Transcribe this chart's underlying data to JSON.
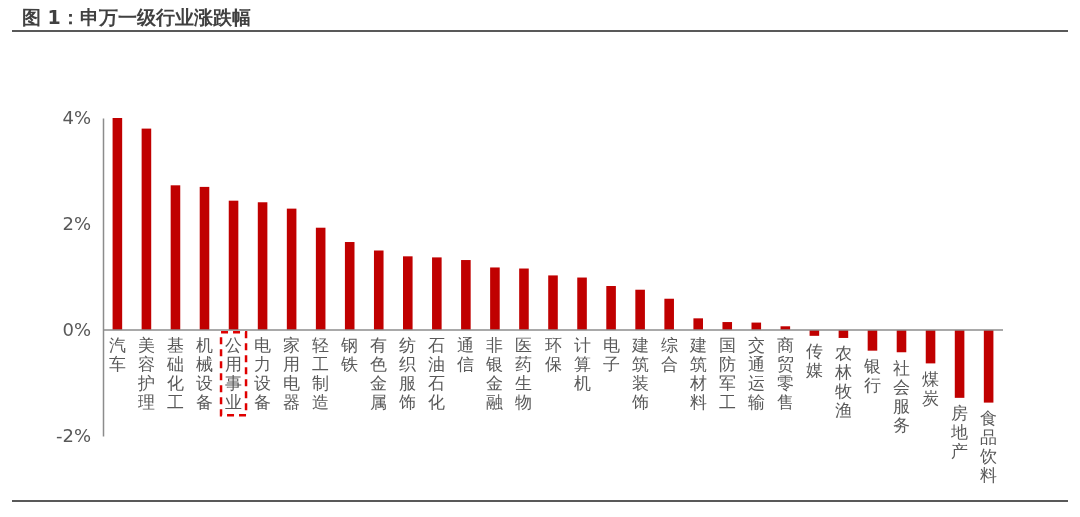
{
  "chart_data": {
    "type": "bar",
    "title": "图 1：申万一级行业涨跌幅",
    "categories": [
      "汽车",
      "美容护理",
      "基础化工",
      "机械设备",
      "公用事业",
      "电力设备",
      "家用电器",
      "轻工制造",
      "钢铁",
      "有色金属",
      "纺织服饰",
      "石油石化",
      "通信",
      "非银金融",
      "医药生物",
      "环保",
      "计算机",
      "电子",
      "建筑装饰",
      "综合",
      "建筑材料",
      "国防军工",
      "交通运输",
      "商贸零售",
      "传媒",
      "农林牧渔",
      "银行",
      "社会服务",
      "煤炭",
      "房地产",
      "食品饮料"
    ],
    "values": [
      4.0,
      3.8,
      2.73,
      2.7,
      2.44,
      2.41,
      2.29,
      1.93,
      1.66,
      1.5,
      1.39,
      1.37,
      1.32,
      1.18,
      1.16,
      1.03,
      0.99,
      0.83,
      0.76,
      0.59,
      0.22,
      0.15,
      0.14,
      0.07,
      -0.11,
      -0.15,
      -0.39,
      -0.42,
      -0.63,
      -1.28,
      -1.37
    ],
    "color": "#c00000",
    "ylim": [
      -2,
      4
    ],
    "yticks": [
      {
        "value": -2,
        "label": "-2%"
      },
      {
        "value": 0,
        "label": "0%"
      },
      {
        "value": 2,
        "label": "2%"
      },
      {
        "value": 4,
        "label": "4%"
      }
    ]
  }
}
